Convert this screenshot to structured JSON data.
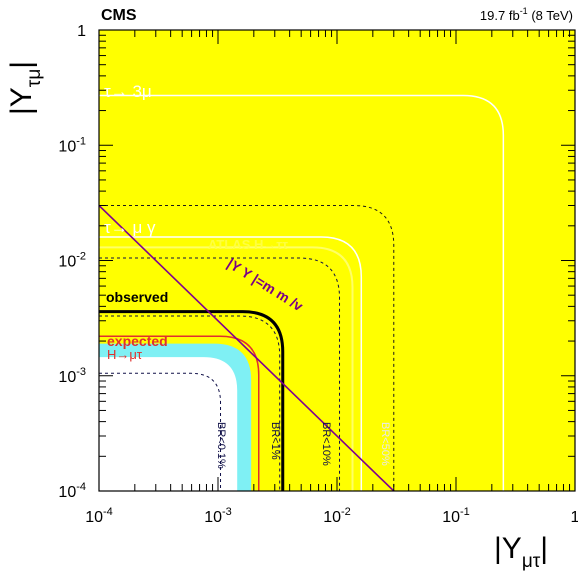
{
  "header": {
    "experiment": "CMS",
    "lumi_text": "19.7 fb",
    "lumi_sup": "-1",
    "lumi_energy": "(8 TeV)"
  },
  "chart_data": {
    "type": "area",
    "xscale": "log",
    "yscale": "log",
    "xlim": [
      0.0001,
      1
    ],
    "ylim": [
      0.0001,
      1
    ],
    "xlabel": "|Y",
    "xlabel_sub": "μτ",
    "xlabel_end": "|",
    "ylabel": "|Y",
    "ylabel_sub": "τμ",
    "ylabel_end": "|",
    "x_ticks": [
      {
        "value": 0.0001,
        "base": "10",
        "exp": "-4"
      },
      {
        "value": 0.001,
        "base": "10",
        "exp": "-3"
      },
      {
        "value": 0.01,
        "base": "10",
        "exp": "-2"
      },
      {
        "value": 0.1,
        "base": "10",
        "exp": "-1"
      },
      {
        "value": 1,
        "base": "1",
        "exp": ""
      }
    ],
    "y_ticks": [
      {
        "value": 0.0001,
        "base": "10",
        "exp": "-4"
      },
      {
        "value": 0.001,
        "base": "10",
        "exp": "-3"
      },
      {
        "value": 0.01,
        "base": "10",
        "exp": "-2"
      },
      {
        "value": 0.1,
        "base": "10",
        "exp": "-1"
      },
      {
        "value": 1,
        "base": "1",
        "exp": ""
      }
    ],
    "regions": [
      {
        "name": "tau_3mu_excluded",
        "color": "#0f3d3b",
        "fill_mode": "outside",
        "corner": [
          0.25,
          0.27
        ]
      },
      {
        "name": "tau_mugamma_excluded",
        "color": "#135d5a",
        "fill_mode": "outside",
        "corner": [
          0.016,
          0.016
        ]
      },
      {
        "name": "atlas_htautau_excluded",
        "color": "#2fc0c1",
        "fill_mode": "outside",
        "corner": [
          0.0135,
          0.013
        ]
      },
      {
        "name": "expected_2sigma",
        "color": "#ffff00",
        "fill_mode": "outside",
        "corner": [
          0.0028,
          0.0028
        ]
      },
      {
        "name": "expected_1sigma",
        "color": "#00e000",
        "fill_mode": "outside",
        "corner": [
          0.0024,
          0.0024
        ]
      },
      {
        "name": "expected_1sigma_inner",
        "color": "#ffff00",
        "fill_mode": "outside",
        "corner": [
          0.0019,
          0.0019
        ]
      },
      {
        "name": "allowed",
        "color": "#ffffff",
        "fill_mode": "inside",
        "corner": [
          0.00145,
          0.00145
        ]
      }
    ],
    "curves": [
      {
        "name": "tau_3mu",
        "corner": [
          0.25,
          0.27
        ],
        "color": "#ffffff",
        "width": 1.5,
        "dash": ""
      },
      {
        "name": "tau_mugamma",
        "corner": [
          0.016,
          0.016
        ],
        "color": "#ffffff",
        "width": 1.5,
        "dash": ""
      },
      {
        "name": "atlas",
        "corner": [
          0.0135,
          0.013
        ],
        "color": "#ffff66",
        "width": 2,
        "dash": ""
      },
      {
        "name": "br50",
        "corner": [
          0.03,
          0.03
        ],
        "color": "#1a1a1a",
        "width": 1,
        "dash": "3,3"
      },
      {
        "name": "br10",
        "corner": [
          0.0105,
          0.0105
        ],
        "color": "#101048",
        "width": 1,
        "dash": "3,3"
      },
      {
        "name": "br1",
        "corner": [
          0.0033,
          0.0033
        ],
        "color": "#101048",
        "width": 1,
        "dash": "3,3"
      },
      {
        "name": "br01",
        "corner": [
          0.00105,
          0.00105
        ],
        "color": "#101048",
        "width": 1,
        "dash": "3,3"
      },
      {
        "name": "expected",
        "corner": [
          0.0022,
          0.0022
        ],
        "color": "#e0302e",
        "width": 1.5,
        "dash": ""
      },
      {
        "name": "observed",
        "corner": [
          0.0035,
          0.0036
        ],
        "color": "#000000",
        "width": 3,
        "dash": ""
      }
    ],
    "naturalness_line": {
      "points": [
        [
          0.0001,
          0.03
        ],
        [
          0.03,
          0.0001
        ]
      ],
      "color": "#800090"
    },
    "labels": {
      "tau3mu": "τ→ 3μ",
      "taumugamma": "τ→ μ γ",
      "atlas": "ATLAS H→ττ",
      "observed": "observed",
      "expected": "expected",
      "hmutau": "H→μτ",
      "br01": "BR<0.1%",
      "br1": "BR<1%",
      "br10": "BR<10%",
      "br50": "BR<50%",
      "naturalness": "|Y  Y  |=m  m /v"
    }
  }
}
